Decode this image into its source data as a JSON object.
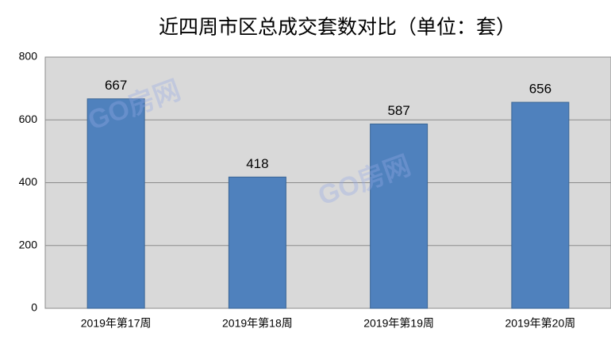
{
  "chart_data": {
    "type": "bar",
    "title": "近四周市区总成交套数对比（单位：套）",
    "categories": [
      "2019年第17周",
      "2019年第18周",
      "2019年第19周",
      "2019年第20周"
    ],
    "values": [
      667,
      418,
      587,
      656
    ],
    "color": "#4f81bd",
    "ylim": [
      0,
      800
    ],
    "yticks": [
      0,
      200,
      400,
      600,
      800
    ],
    "grid": true,
    "watermark": "GO房网"
  }
}
